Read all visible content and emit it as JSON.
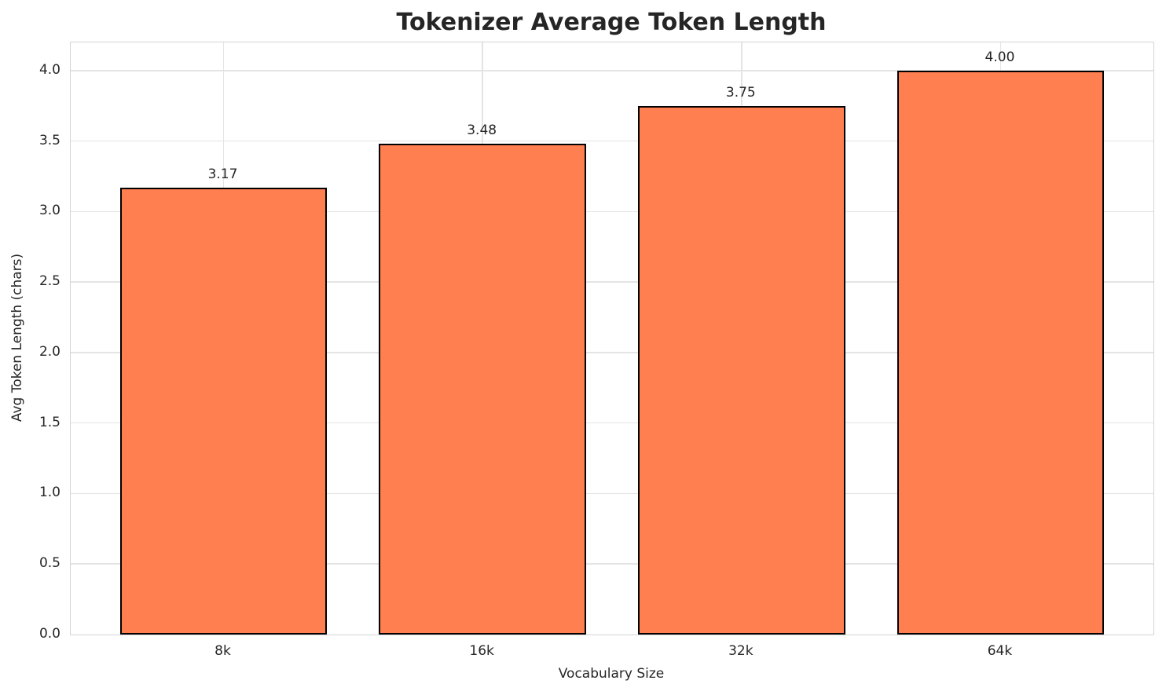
{
  "chart_data": {
    "type": "bar",
    "title": "Tokenizer Average Token Length",
    "xlabel": "Vocabulary Size",
    "ylabel": "Avg Token Length (chars)",
    "categories": [
      "8k",
      "16k",
      "32k",
      "64k"
    ],
    "values": [
      3.17,
      3.48,
      3.75,
      4.0
    ],
    "value_labels": [
      "3.17",
      "3.48",
      "3.75",
      "4.00"
    ],
    "yticks": [
      0.0,
      0.5,
      1.0,
      1.5,
      2.0,
      2.5,
      3.0,
      3.5,
      4.0
    ],
    "ytick_labels": [
      "0.0",
      "0.5",
      "1.0",
      "1.5",
      "2.0",
      "2.5",
      "3.0",
      "3.5",
      "4.0"
    ],
    "ylim": [
      0,
      4.2
    ],
    "grid": true,
    "legend": "none",
    "colors": {
      "bar_fill": "#FF7F50",
      "bar_edge": "#000000",
      "grid": "#e4e4e4",
      "spine": "#d4d4d4",
      "text": "#262626",
      "title_text": "#252525",
      "background": "#ffffff"
    }
  }
}
